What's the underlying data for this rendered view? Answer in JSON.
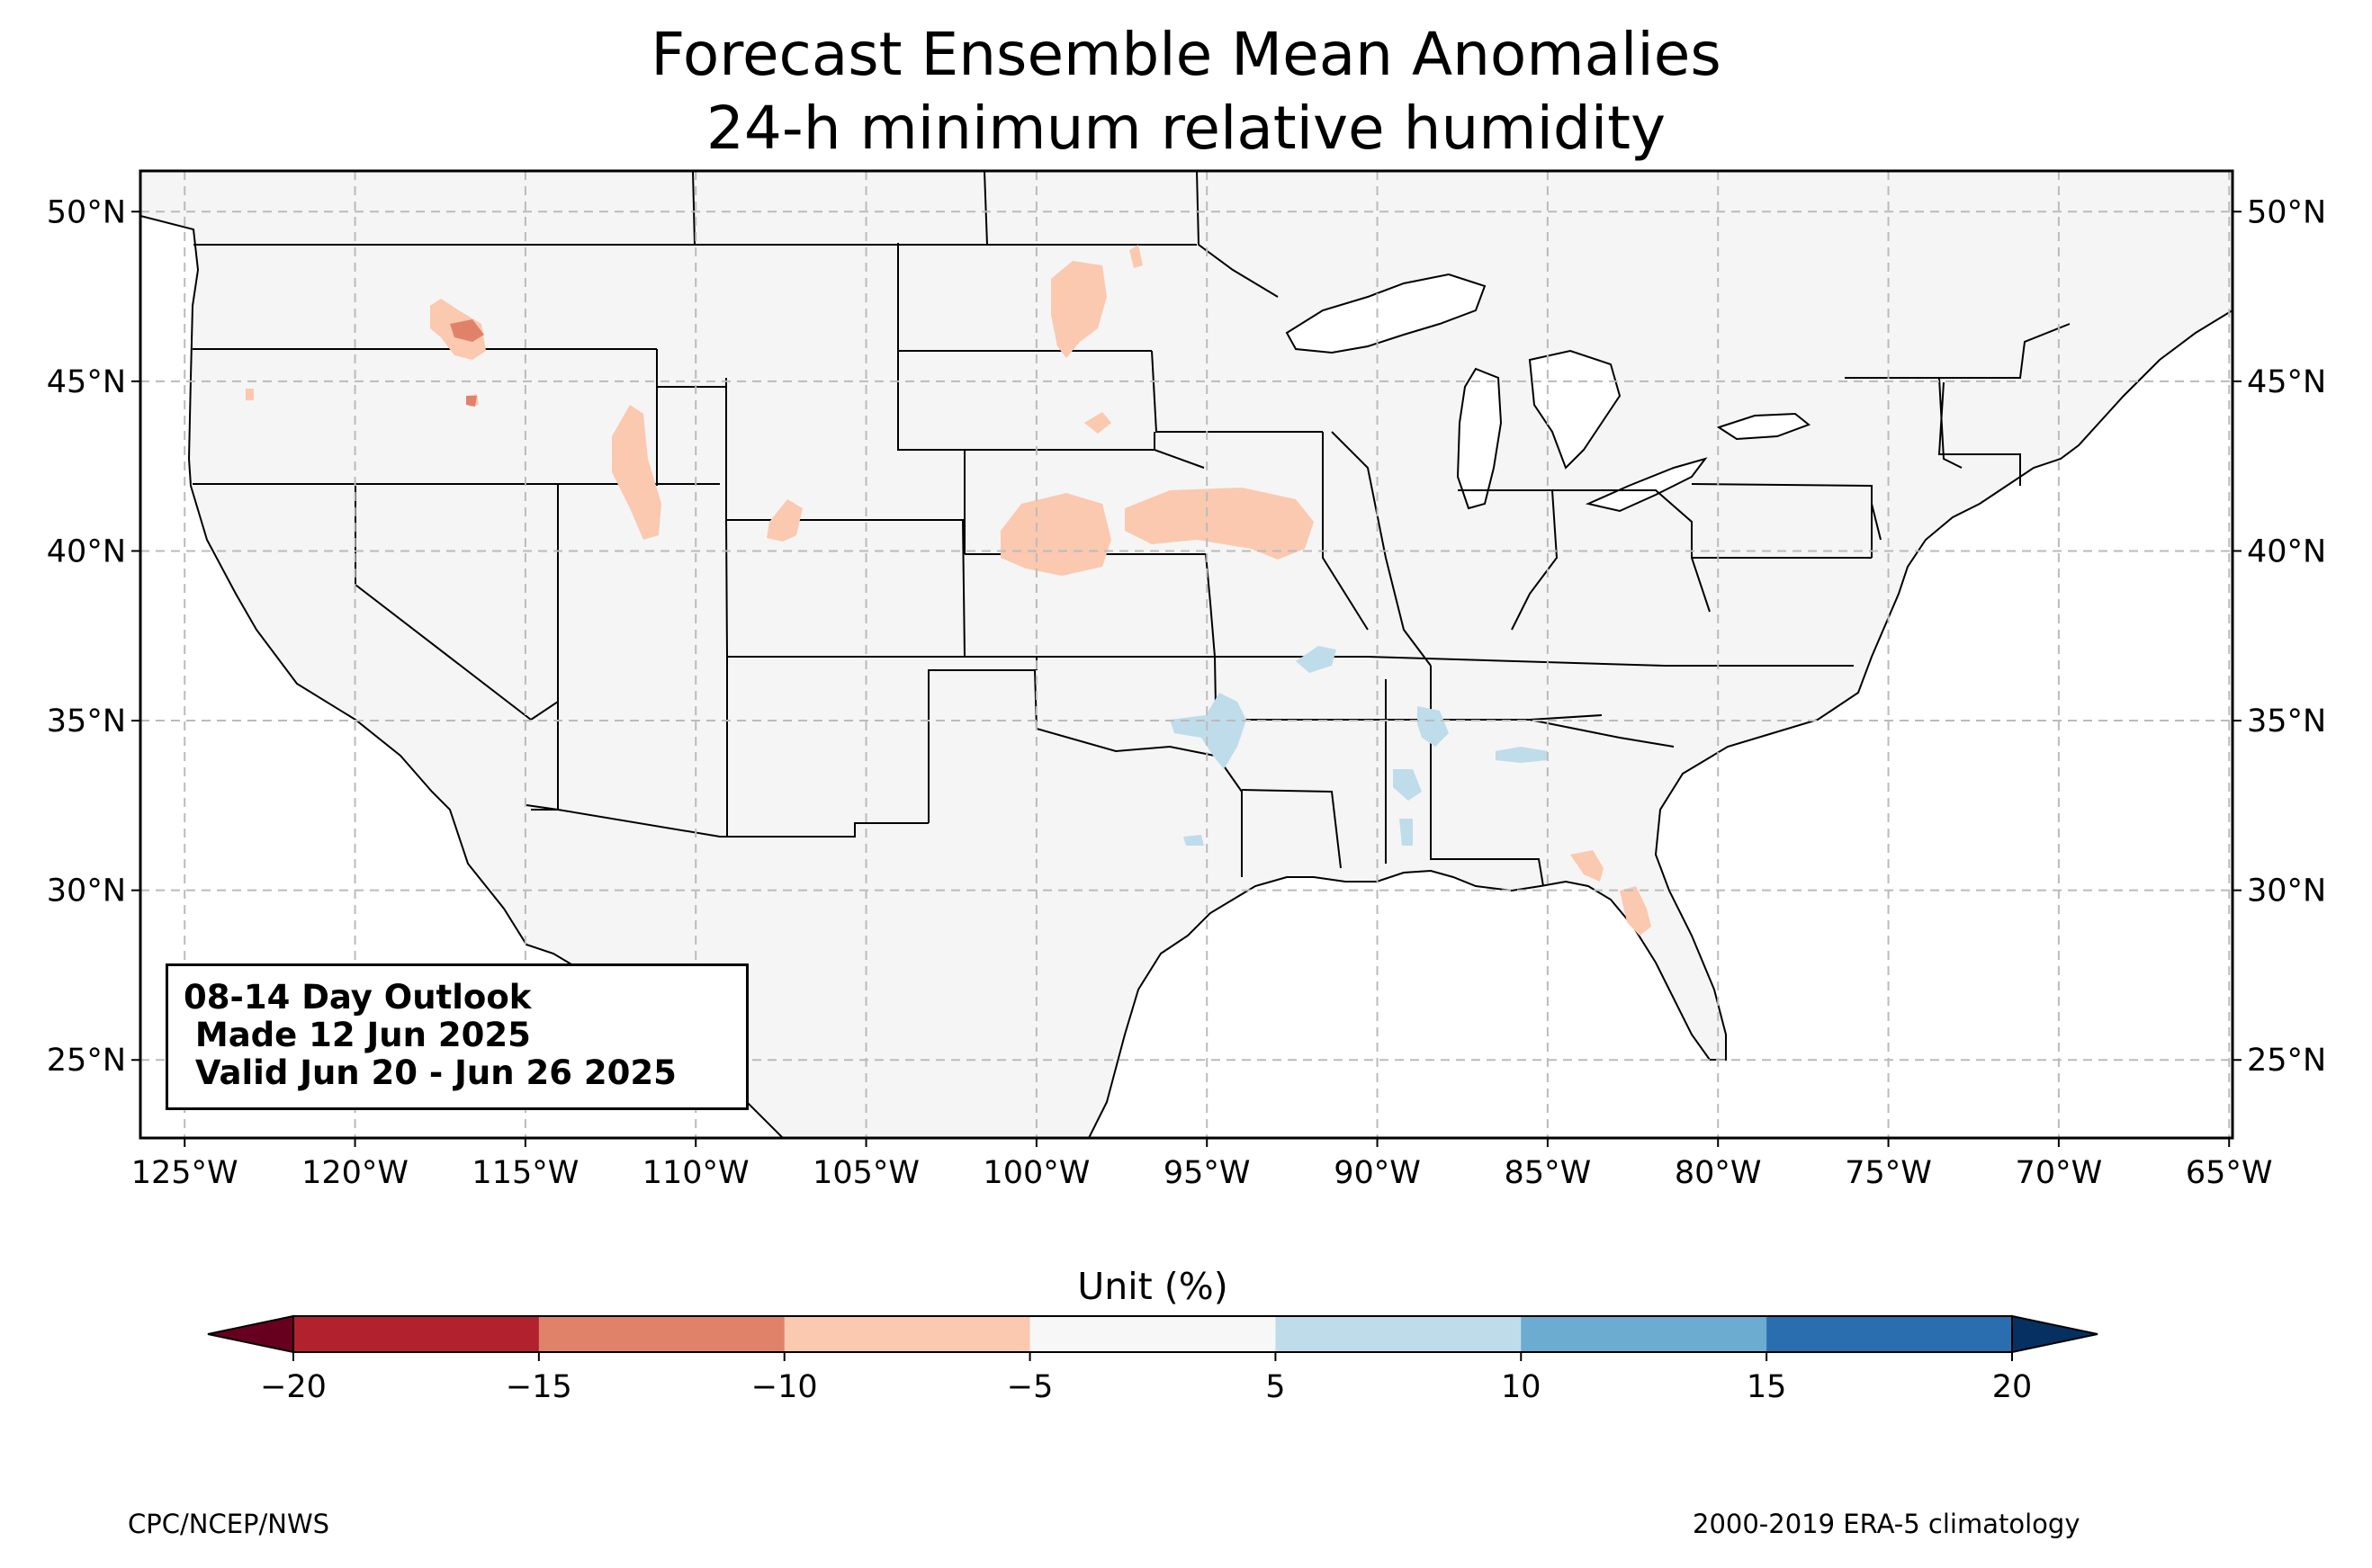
{
  "title": "Forecast Ensemble Mean Anomalies",
  "subtitle": "24-h minimum relative humidity",
  "info_box": {
    "line1": "08-14 Day Outlook",
    "line2": " Made 12 Jun 2025",
    "line3": " Valid Jun 20 - Jun 26 2025"
  },
  "map": {
    "lon_range": [
      -126.3,
      -64.9
    ],
    "lat_range": [
      22.7,
      51.2
    ],
    "lon_ticks": [
      -125,
      -120,
      -115,
      -110,
      -105,
      -100,
      -95,
      -90,
      -85,
      -80,
      -75,
      -70,
      -65
    ],
    "lon_tick_labels": [
      "125°W",
      "120°W",
      "115°W",
      "110°W",
      "105°W",
      "100°W",
      "95°W",
      "90°W",
      "85°W",
      "80°W",
      "75°W",
      "70°W",
      "65°W"
    ],
    "lat_ticks": [
      25,
      30,
      35,
      40,
      45,
      50
    ],
    "lat_tick_labels": [
      "25°N",
      "30°N",
      "35°N",
      "40°N",
      "45°N",
      "50°N"
    ],
    "gridlines": true,
    "land_color": "#f5f5f5"
  },
  "colorbar": {
    "label": "Unit (%)",
    "bounds": [
      -20,
      -15,
      -10,
      -5,
      5,
      10,
      15,
      20
    ],
    "tick_labels": [
      "−20",
      "−15",
      "−10",
      "−5",
      "5",
      "10",
      "15",
      "20"
    ],
    "colors": [
      "#b2222e",
      "#e0826a",
      "#fac9b0",
      "#f7f7f7",
      "#bfdceb",
      "#6bacd0",
      "#2a6eb0"
    ],
    "under_color": "#67001f",
    "over_color": "#053061",
    "extend": "both"
  },
  "credits": {
    "left": "CPC/NCEP/NWS",
    "right": "2000-2019 ERA-5 climatology"
  }
}
